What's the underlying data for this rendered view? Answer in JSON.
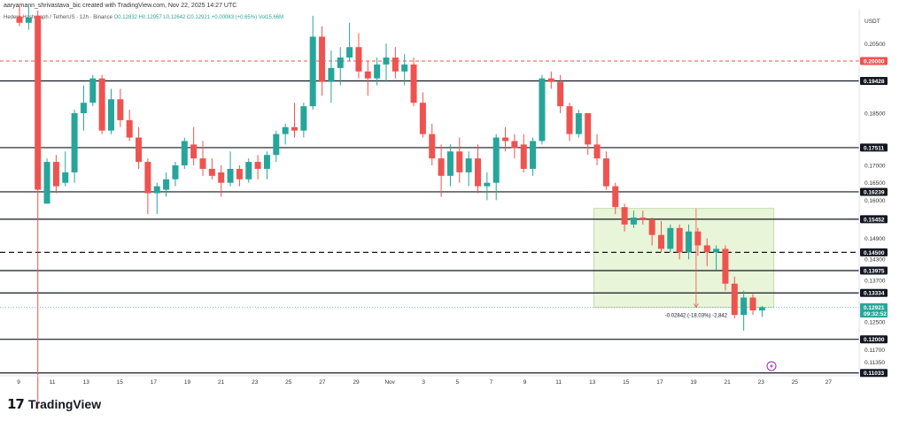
{
  "header": {
    "credit": "aaryamann_shrivastava_bic created with TradingView.com, Nov 22, 2025 14:27 UTC",
    "symbol": "Hedera Hashgraph / TetherUS · 12h · Binance",
    "ohlc": "O0.12832 H0.12957 L0.12642 C0.12921 +0.00083 (+0.65%)",
    "volume": "Vol15.66M"
  },
  "logo": {
    "mark": "17",
    "text": "TradingView"
  },
  "flash_icon": "lightning-icon",
  "colors": {
    "up": "#26a69a",
    "down": "#ef5350",
    "level_line": "#131722",
    "dashed_red": "#ef5350",
    "zone_fill": "#e8f5d8",
    "zone_border": "#b9d8a0"
  },
  "chart_data": {
    "type": "candlestick",
    "currency": "USDT",
    "ylim": [
      0.1095,
      0.215
    ],
    "x_ticks": [
      "9",
      "11",
      "13",
      "15",
      "17",
      "19",
      "21",
      "23",
      "25",
      "27",
      "29",
      "Nov",
      "3",
      "5",
      "7",
      "9",
      "11",
      "13",
      "15",
      "17",
      "19",
      "21",
      "23",
      "25",
      "27"
    ],
    "y_ticks": [
      "0.20500",
      "0.18500",
      "0.17000",
      "0.16500",
      "0.16000",
      "0.14900",
      "0.14300",
      "0.13700",
      "0.12500",
      "0.11700",
      "0.11350"
    ],
    "levels": [
      0.19428,
      0.17511,
      0.16239,
      0.15452,
      0.145,
      0.13975,
      0.13334,
      0.12,
      0.11033
    ],
    "level_labels": [
      "0.19428",
      "0.17511",
      "0.16239",
      "0.15452",
      "0.14500",
      "0.13975",
      "0.13334",
      "0.12000",
      "0.11033"
    ],
    "dashed_level": 0.145,
    "red_dashed_level": 0.2,
    "red_dashed_label": "0.20000",
    "last_price": "0.12921",
    "countdown": "09:32:52",
    "measure": {
      "label": "-0.02842 (-18.03%) -2,842",
      "top_price": 0.15763,
      "bottom_price": 0.12921
    },
    "candles": [
      {
        "t": 0,
        "o": 0.2128,
        "h": 0.216,
        "l": 0.21,
        "c": 0.211
      },
      {
        "t": 1,
        "o": 0.211,
        "h": 0.216,
        "l": 0.209,
        "c": 0.2125
      },
      {
        "t": 2,
        "o": 0.213,
        "h": 0.2145,
        "l": 0.1,
        "c": 0.163
      },
      {
        "t": 3,
        "o": 0.159,
        "h": 0.172,
        "l": 0.159,
        "c": 0.171
      },
      {
        "t": 4,
        "o": 0.171,
        "h": 0.173,
        "l": 0.162,
        "c": 0.164
      },
      {
        "t": 5,
        "o": 0.165,
        "h": 0.174,
        "l": 0.164,
        "c": 0.168
      },
      {
        "t": 6,
        "o": 0.168,
        "h": 0.186,
        "l": 0.165,
        "c": 0.185
      },
      {
        "t": 7,
        "o": 0.185,
        "h": 0.193,
        "l": 0.18,
        "c": 0.188
      },
      {
        "t": 8,
        "o": 0.188,
        "h": 0.196,
        "l": 0.187,
        "c": 0.195
      },
      {
        "t": 9,
        "o": 0.195,
        "h": 0.196,
        "l": 0.179,
        "c": 0.18
      },
      {
        "t": 10,
        "o": 0.18,
        "h": 0.192,
        "l": 0.179,
        "c": 0.189
      },
      {
        "t": 11,
        "o": 0.189,
        "h": 0.192,
        "l": 0.181,
        "c": 0.183
      },
      {
        "t": 12,
        "o": 0.183,
        "h": 0.186,
        "l": 0.177,
        "c": 0.178
      },
      {
        "t": 13,
        "o": 0.178,
        "h": 0.181,
        "l": 0.169,
        "c": 0.171
      },
      {
        "t": 14,
        "o": 0.171,
        "h": 0.172,
        "l": 0.156,
        "c": 0.162
      },
      {
        "t": 15,
        "o": 0.162,
        "h": 0.165,
        "l": 0.156,
        "c": 0.164
      },
      {
        "t": 16,
        "o": 0.163,
        "h": 0.168,
        "l": 0.161,
        "c": 0.166
      },
      {
        "t": 17,
        "o": 0.166,
        "h": 0.171,
        "l": 0.164,
        "c": 0.17
      },
      {
        "t": 18,
        "o": 0.17,
        "h": 0.178,
        "l": 0.169,
        "c": 0.177
      },
      {
        "t": 19,
        "o": 0.176,
        "h": 0.181,
        "l": 0.17,
        "c": 0.172
      },
      {
        "t": 20,
        "o": 0.172,
        "h": 0.177,
        "l": 0.167,
        "c": 0.169
      },
      {
        "t": 21,
        "o": 0.169,
        "h": 0.172,
        "l": 0.166,
        "c": 0.167
      },
      {
        "t": 22,
        "o": 0.168,
        "h": 0.17,
        "l": 0.161,
        "c": 0.165
      },
      {
        "t": 23,
        "o": 0.165,
        "h": 0.174,
        "l": 0.164,
        "c": 0.169
      },
      {
        "t": 24,
        "o": 0.169,
        "h": 0.17,
        "l": 0.164,
        "c": 0.166
      },
      {
        "t": 25,
        "o": 0.166,
        "h": 0.172,
        "l": 0.165,
        "c": 0.171
      },
      {
        "t": 26,
        "o": 0.171,
        "h": 0.173,
        "l": 0.166,
        "c": 0.169
      },
      {
        "t": 27,
        "o": 0.169,
        "h": 0.174,
        "l": 0.166,
        "c": 0.173
      },
      {
        "t": 28,
        "o": 0.173,
        "h": 0.18,
        "l": 0.171,
        "c": 0.179
      },
      {
        "t": 29,
        "o": 0.179,
        "h": 0.182,
        "l": 0.176,
        "c": 0.181
      },
      {
        "t": 30,
        "o": 0.181,
        "h": 0.188,
        "l": 0.178,
        "c": 0.18
      },
      {
        "t": 31,
        "o": 0.18,
        "h": 0.188,
        "l": 0.178,
        "c": 0.187
      },
      {
        "t": 32,
        "o": 0.187,
        "h": 0.213,
        "l": 0.186,
        "c": 0.207
      },
      {
        "t": 33,
        "o": 0.207,
        "h": 0.21,
        "l": 0.19,
        "c": 0.194
      },
      {
        "t": 34,
        "o": 0.194,
        "h": 0.203,
        "l": 0.188,
        "c": 0.198
      },
      {
        "t": 35,
        "o": 0.198,
        "h": 0.204,
        "l": 0.193,
        "c": 0.201
      },
      {
        "t": 36,
        "o": 0.201,
        "h": 0.211,
        "l": 0.2,
        "c": 0.204
      },
      {
        "t": 37,
        "o": 0.204,
        "h": 0.208,
        "l": 0.195,
        "c": 0.197
      },
      {
        "t": 38,
        "o": 0.197,
        "h": 0.2,
        "l": 0.19,
        "c": 0.195
      },
      {
        "t": 39,
        "o": 0.195,
        "h": 0.201,
        "l": 0.193,
        "c": 0.199
      },
      {
        "t": 40,
        "o": 0.199,
        "h": 0.205,
        "l": 0.194,
        "c": 0.201
      },
      {
        "t": 41,
        "o": 0.201,
        "h": 0.204,
        "l": 0.195,
        "c": 0.197
      },
      {
        "t": 42,
        "o": 0.197,
        "h": 0.202,
        "l": 0.193,
        "c": 0.199
      },
      {
        "t": 43,
        "o": 0.199,
        "h": 0.201,
        "l": 0.187,
        "c": 0.188
      },
      {
        "t": 44,
        "o": 0.188,
        "h": 0.191,
        "l": 0.178,
        "c": 0.179
      },
      {
        "t": 45,
        "o": 0.179,
        "h": 0.182,
        "l": 0.17,
        "c": 0.172
      },
      {
        "t": 46,
        "o": 0.172,
        "h": 0.176,
        "l": 0.161,
        "c": 0.167
      },
      {
        "t": 47,
        "o": 0.167,
        "h": 0.176,
        "l": 0.164,
        "c": 0.174
      },
      {
        "t": 48,
        "o": 0.174,
        "h": 0.178,
        "l": 0.165,
        "c": 0.168
      },
      {
        "t": 49,
        "o": 0.168,
        "h": 0.174,
        "l": 0.164,
        "c": 0.172
      },
      {
        "t": 50,
        "o": 0.172,
        "h": 0.176,
        "l": 0.162,
        "c": 0.164
      },
      {
        "t": 51,
        "o": 0.164,
        "h": 0.168,
        "l": 0.16,
        "c": 0.165
      },
      {
        "t": 52,
        "o": 0.165,
        "h": 0.179,
        "l": 0.16,
        "c": 0.178
      },
      {
        "t": 53,
        "o": 0.178,
        "h": 0.181,
        "l": 0.174,
        "c": 0.177
      },
      {
        "t": 54,
        "o": 0.177,
        "h": 0.179,
        "l": 0.172,
        "c": 0.175
      },
      {
        "t": 55,
        "o": 0.176,
        "h": 0.179,
        "l": 0.168,
        "c": 0.169
      },
      {
        "t": 56,
        "o": 0.169,
        "h": 0.178,
        "l": 0.167,
        "c": 0.177
      },
      {
        "t": 57,
        "o": 0.177,
        "h": 0.196,
        "l": 0.176,
        "c": 0.195
      },
      {
        "t": 58,
        "o": 0.195,
        "h": 0.197,
        "l": 0.192,
        "c": 0.194
      },
      {
        "t": 59,
        "o": 0.194,
        "h": 0.196,
        "l": 0.185,
        "c": 0.187
      },
      {
        "t": 60,
        "o": 0.187,
        "h": 0.188,
        "l": 0.177,
        "c": 0.179
      },
      {
        "t": 61,
        "o": 0.179,
        "h": 0.186,
        "l": 0.178,
        "c": 0.185
      },
      {
        "t": 62,
        "o": 0.185,
        "h": 0.185,
        "l": 0.173,
        "c": 0.176
      },
      {
        "t": 63,
        "o": 0.176,
        "h": 0.179,
        "l": 0.17,
        "c": 0.172
      },
      {
        "t": 64,
        "o": 0.172,
        "h": 0.174,
        "l": 0.163,
        "c": 0.164
      },
      {
        "t": 65,
        "o": 0.164,
        "h": 0.165,
        "l": 0.156,
        "c": 0.158
      },
      {
        "t": 66,
        "o": 0.158,
        "h": 0.159,
        "l": 0.151,
        "c": 0.153
      },
      {
        "t": 67,
        "o": 0.153,
        "h": 0.157,
        "l": 0.152,
        "c": 0.155
      },
      {
        "t": 68,
        "o": 0.155,
        "h": 0.157,
        "l": 0.153,
        "c": 0.1545
      },
      {
        "t": 69,
        "o": 0.1545,
        "h": 0.155,
        "l": 0.147,
        "c": 0.15
      },
      {
        "t": 70,
        "o": 0.15,
        "h": 0.154,
        "l": 0.145,
        "c": 0.146
      },
      {
        "t": 71,
        "o": 0.146,
        "h": 0.153,
        "l": 0.145,
        "c": 0.152
      },
      {
        "t": 72,
        "o": 0.152,
        "h": 0.153,
        "l": 0.143,
        "c": 0.145
      },
      {
        "t": 73,
        "o": 0.145,
        "h": 0.153,
        "l": 0.143,
        "c": 0.151
      },
      {
        "t": 74,
        "o": 0.151,
        "h": 0.152,
        "l": 0.144,
        "c": 0.147
      },
      {
        "t": 75,
        "o": 0.147,
        "h": 0.149,
        "l": 0.141,
        "c": 0.145
      },
      {
        "t": 76,
        "o": 0.145,
        "h": 0.147,
        "l": 0.14,
        "c": 0.146
      },
      {
        "t": 77,
        "o": 0.146,
        "h": 0.147,
        "l": 0.134,
        "c": 0.136
      },
      {
        "t": 78,
        "o": 0.136,
        "h": 0.138,
        "l": 0.126,
        "c": 0.127
      },
      {
        "t": 79,
        "o": 0.127,
        "h": 0.134,
        "l": 0.1225,
        "c": 0.132
      },
      {
        "t": 80,
        "o": 0.132,
        "h": 0.133,
        "l": 0.127,
        "c": 0.1283
      },
      {
        "t": 81,
        "o": 0.1283,
        "h": 0.1296,
        "l": 0.1264,
        "c": 0.1292
      }
    ]
  }
}
